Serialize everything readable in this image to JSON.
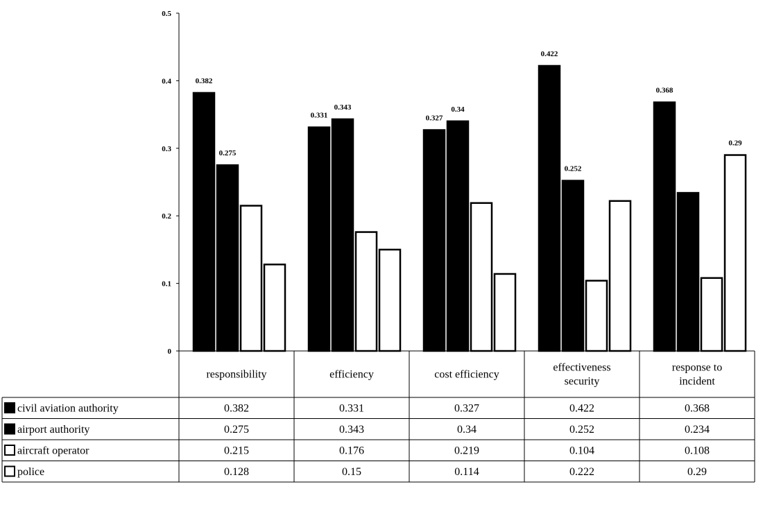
{
  "chart_data": {
    "type": "bar",
    "title": "",
    "xlabel": "",
    "ylabel": "",
    "ylim": [
      0,
      0.5
    ],
    "yticks": [
      "0",
      "0.1",
      "0.2",
      "0.3",
      "0.4",
      "0.5"
    ],
    "grid": false,
    "legend": "bottom data table",
    "categories": [
      [
        "responsibility"
      ],
      [
        "efficiency"
      ],
      [
        "cost efficiency"
      ],
      [
        "effectiveness",
        "security"
      ],
      [
        "response to",
        "incident"
      ]
    ],
    "series": [
      {
        "name": "civil aviation authority",
        "color": "#000000",
        "values": [
          0.382,
          0.331,
          0.327,
          0.422,
          0.368
        ],
        "table_values": [
          "0.382",
          "0.331",
          "0.327",
          "0.422",
          "0.368"
        ],
        "bar_labels": [
          "0.382",
          "0.331",
          "0.327",
          "0.422",
          "0.368"
        ]
      },
      {
        "name": "airport authority",
        "color": "#000000",
        "values": [
          0.275,
          0.343,
          0.34,
          0.252,
          0.234
        ],
        "table_values": [
          "0.275",
          "0.343",
          "0.34",
          "0.252",
          "0.234"
        ],
        "bar_labels": [
          "0.275",
          "0.343",
          "0.34",
          "0.252",
          ""
        ]
      },
      {
        "name": "aircraft operator",
        "color": "#ffffff",
        "values": [
          0.215,
          0.176,
          0.219,
          0.104,
          0.108
        ],
        "table_values": [
          "0.215",
          "0.176",
          "0.219",
          "0.104",
          "0.108"
        ],
        "bar_labels": [
          "",
          "",
          "",
          "",
          ""
        ]
      },
      {
        "name": "police",
        "color": "#ffffff",
        "values": [
          0.128,
          0.15,
          0.114,
          0.222,
          0.29
        ],
        "table_values": [
          "0.128",
          "0.15",
          "0.114",
          "0.222",
          "0.29"
        ],
        "bar_labels": [
          "",
          "",
          "",
          "",
          "0.29"
        ]
      }
    ]
  }
}
